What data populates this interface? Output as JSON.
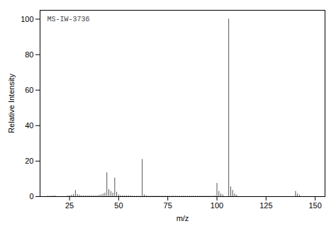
{
  "chart_data": {
    "type": "stem",
    "title": "MS-IW-3736",
    "x_label": "m/z",
    "y_label": "Relative Intensity",
    "xlim": [
      10,
      155
    ],
    "ylim": [
      0,
      105
    ],
    "xticks": [
      25,
      50,
      75,
      100,
      125,
      150
    ],
    "yticks": [
      0,
      20,
      40,
      60,
      80,
      100
    ],
    "color": "#555555",
    "grid": false,
    "x": [
      14,
      15,
      16,
      17,
      18,
      24,
      25,
      26,
      27,
      28,
      29,
      30,
      31,
      32,
      33,
      34,
      35,
      36,
      37,
      38,
      39,
      40,
      41,
      42,
      43,
      44,
      45,
      46,
      47,
      48,
      49,
      50,
      51,
      52,
      53,
      54,
      55,
      56,
      57,
      58,
      59,
      60,
      61,
      62,
      63,
      64,
      65,
      66,
      67,
      68,
      69,
      70,
      71,
      72,
      73,
      74,
      75,
      76,
      77,
      78,
      79,
      80,
      81,
      82,
      83,
      84,
      85,
      86,
      87,
      88,
      89,
      90,
      91,
      92,
      93,
      94,
      95,
      96,
      97,
      98,
      99,
      100,
      101,
      102,
      103,
      106,
      107,
      108,
      109,
      110,
      140,
      141,
      142
    ],
    "values": [
      0.3,
      0.3,
      0.3,
      0.5,
      0.3,
      0.5,
      0.5,
      0.8,
      1.2,
      3.5,
      1.2,
      0.8,
      0.5,
      0.5,
      0.5,
      0.5,
      0.5,
      0.5,
      0.5,
      0.5,
      0.5,
      0.8,
      1.0,
      1.5,
      2.0,
      13.5,
      4.0,
      3.0,
      2.0,
      10.5,
      2.5,
      1.0,
      0.5,
      0.5,
      0.5,
      0.5,
      0.5,
      0.5,
      0.3,
      0.3,
      0.3,
      0.3,
      0.3,
      21.0,
      1.0,
      0.5,
      0.3,
      0.3,
      0.3,
      0.3,
      0.3,
      0.3,
      0.3,
      0.3,
      0.3,
      0.3,
      0.3,
      0.3,
      0.3,
      0.3,
      0.3,
      0.3,
      0.3,
      0.3,
      0.3,
      0.3,
      0.3,
      0.3,
      0.3,
      0.3,
      0.3,
      0.3,
      0.3,
      0.3,
      0.3,
      0.3,
      0.3,
      0.3,
      0.3,
      0.3,
      0.5,
      7.5,
      3.0,
      1.5,
      1.0,
      100.0,
      5.5,
      3.5,
      1.5,
      0.8,
      3.0,
      1.5,
      0.8
    ]
  }
}
